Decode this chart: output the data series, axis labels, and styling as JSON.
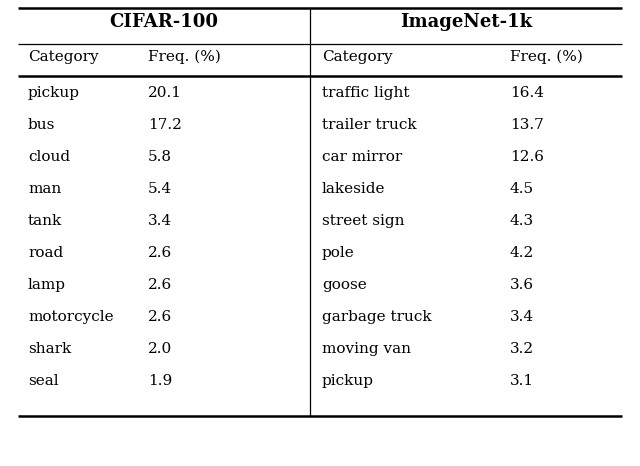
{
  "cifar_header": "CIFAR-100",
  "imagenet_header": "ImageNet-1k",
  "col_headers": [
    "Category",
    "Freq. (%)",
    "Category",
    "Freq. (%)"
  ],
  "cifar_categories": [
    "pickup",
    "bus",
    "cloud",
    "man",
    "tank",
    "road",
    "lamp",
    "motorcycle",
    "shark",
    "seal"
  ],
  "cifar_freqs": [
    "20.1",
    "17.2",
    "5.8",
    "5.4",
    "3.4",
    "2.6",
    "2.6",
    "2.6",
    "2.0",
    "1.9"
  ],
  "imagenet_categories": [
    "traffic light",
    "trailer truck",
    "car mirror",
    "lakeside",
    "street sign",
    "pole",
    "goose",
    "garbage truck",
    "moving van",
    "pickup"
  ],
  "imagenet_freqs": [
    "16.4",
    "13.7",
    "12.6",
    "4.5",
    "4.3",
    "4.2",
    "3.6",
    "3.4",
    "3.2",
    "3.1"
  ],
  "background_color": "#ffffff",
  "text_color": "#000000",
  "figsize": [
    6.4,
    4.66
  ],
  "dpi": 100
}
